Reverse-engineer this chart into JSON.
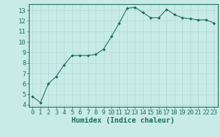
{
  "x": [
    0,
    1,
    2,
    3,
    4,
    5,
    6,
    7,
    8,
    9,
    10,
    11,
    12,
    13,
    14,
    15,
    16,
    17,
    18,
    19,
    20,
    21,
    22,
    23
  ],
  "y": [
    4.8,
    4.2,
    6.0,
    6.7,
    7.8,
    8.7,
    8.7,
    8.7,
    8.8,
    9.3,
    10.5,
    11.8,
    13.2,
    13.3,
    12.8,
    12.3,
    12.3,
    13.1,
    12.6,
    12.3,
    12.2,
    12.1,
    12.1,
    11.8
  ],
  "xlabel": "Humidex (Indice chaleur)",
  "ylim": [
    3.8,
    13.6
  ],
  "xlim": [
    -0.5,
    23.5
  ],
  "yticks": [
    4,
    5,
    6,
    7,
    8,
    9,
    10,
    11,
    12,
    13
  ],
  "xticks": [
    0,
    1,
    2,
    3,
    4,
    5,
    6,
    7,
    8,
    9,
    10,
    11,
    12,
    13,
    14,
    15,
    16,
    17,
    18,
    19,
    20,
    21,
    22,
    23
  ],
  "line_color": "#1a6b5a",
  "marker_color": "#1a6b5a",
  "bg_color": "#c8ebe8",
  "grid_color": "#afd8d3",
  "border_color": "#1a6b5a",
  "xlabel_fontsize": 7.5,
  "tick_fontsize": 6.5
}
